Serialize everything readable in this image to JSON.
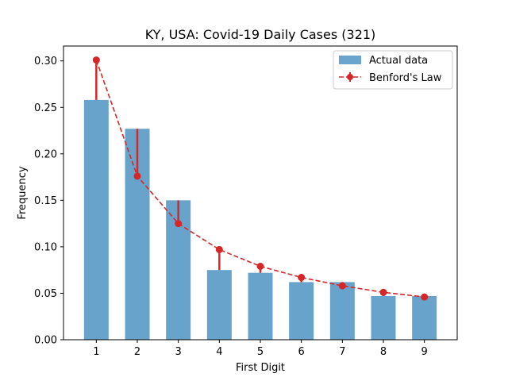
{
  "chart_data": {
    "type": "bar",
    "title": "KY, USA: Covid-19 Daily Cases (321)",
    "xlabel": "First Digit",
    "ylabel": "Frequency",
    "categories": [
      "1",
      "2",
      "3",
      "4",
      "5",
      "6",
      "7",
      "8",
      "9"
    ],
    "ylim": [
      0,
      0.3
    ],
    "yticks": [
      "0.00",
      "0.05",
      "0.10",
      "0.15",
      "0.20",
      "0.25",
      "0.30"
    ],
    "series": [
      {
        "name": "Actual data",
        "kind": "bar",
        "color": "#5b9bc8",
        "values": [
          0.258,
          0.227,
          0.15,
          0.075,
          0.072,
          0.062,
          0.062,
          0.047,
          0.047
        ]
      },
      {
        "name": "Benford's Law",
        "kind": "line",
        "color": "#d62728",
        "values": [
          0.301,
          0.176,
          0.125,
          0.097,
          0.079,
          0.067,
          0.058,
          0.051,
          0.046
        ]
      }
    ],
    "legend": {
      "position": "top-right",
      "entries": [
        "Actual data",
        "Benford's Law"
      ]
    },
    "grid": false
  }
}
